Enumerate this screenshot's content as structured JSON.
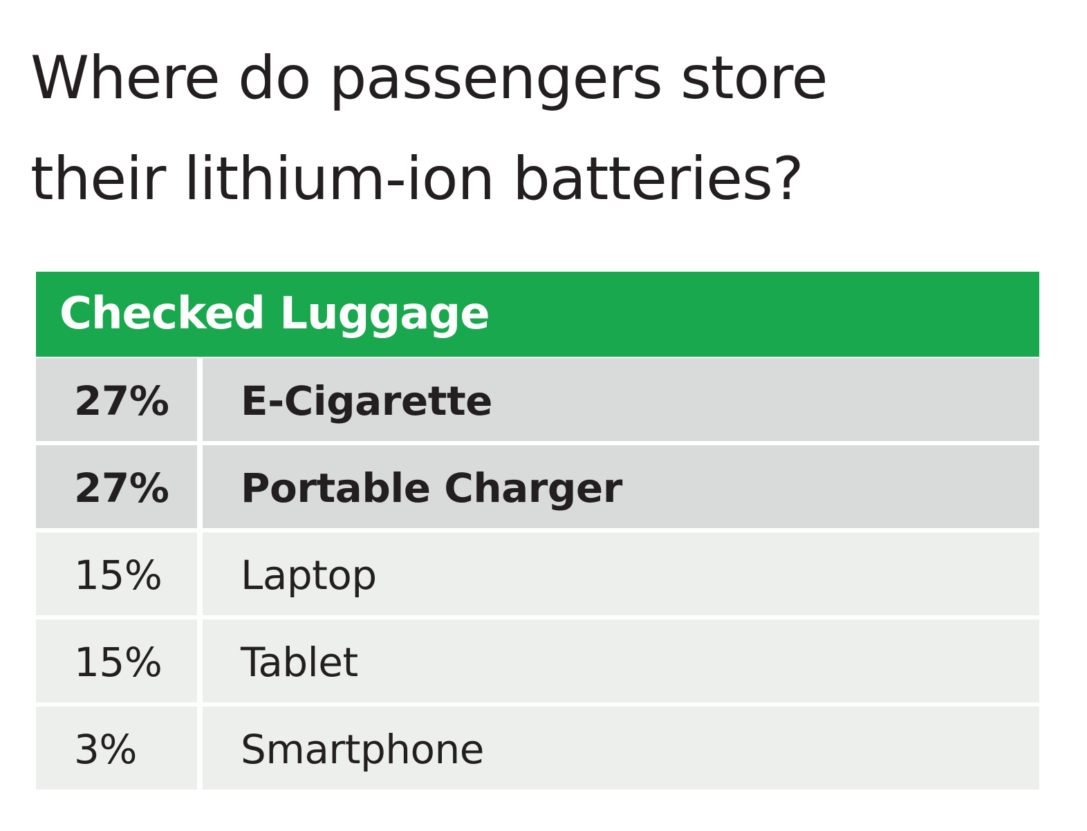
{
  "chart_data": {
    "type": "table",
    "title": "Where do passengers store\ntheir lithium-ion batteries?",
    "header": "Checked Luggage",
    "rows": [
      {
        "value": "27%",
        "label": "E-Cigarette",
        "highlight": true
      },
      {
        "value": "27%",
        "label": "Portable Charger",
        "highlight": true
      },
      {
        "value": "15%",
        "label": "Laptop",
        "highlight": false
      },
      {
        "value": "15%",
        "label": "Tablet",
        "highlight": false
      },
      {
        "value": "3%",
        "label": "Smartphone",
        "highlight": false
      }
    ],
    "colors": {
      "header_bg": "#1aa84e",
      "highlight_row_bg": "#d9dbda",
      "normal_row_bg": "#edefec"
    }
  }
}
